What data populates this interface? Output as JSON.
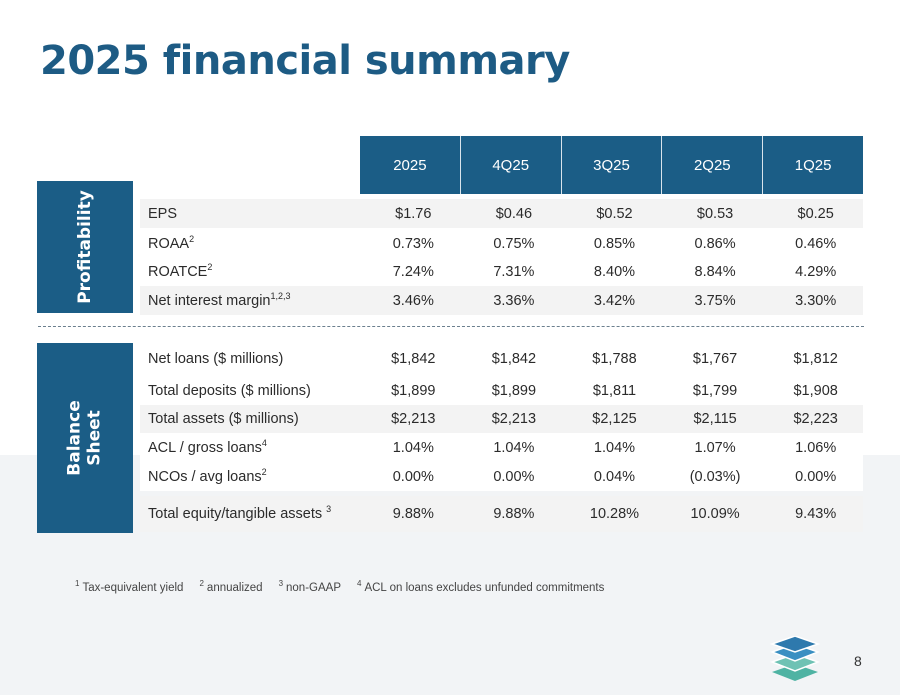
{
  "title": "2025 financial summary",
  "sections": {
    "profitability": "Profitability",
    "balance_sheet_line1": "Balance",
    "balance_sheet_line2": "Sheet"
  },
  "columns": [
    "2025",
    "4Q25",
    "3Q25",
    "2Q25",
    "1Q25"
  ],
  "rows": [
    {
      "label": "EPS",
      "sup": "",
      "values": [
        "$1.76",
        "$0.46",
        "$0.52",
        "$0.53",
        "$0.25"
      ]
    },
    {
      "label": "ROAA",
      "sup": "2",
      "values": [
        "0.73%",
        "0.75%",
        "0.85%",
        "0.86%",
        "0.46%"
      ]
    },
    {
      "label": "ROATCE",
      "sup": "2",
      "values": [
        "7.24%",
        "7.31%",
        "8.40%",
        "8.84%",
        "4.29%"
      ]
    },
    {
      "label": "Net interest margin",
      "sup": "1,2,3",
      "values": [
        "3.46%",
        "3.36%",
        "3.42%",
        "3.75%",
        "3.30%"
      ]
    },
    {
      "label": "Net loans ($ millions)",
      "sup": "",
      "values": [
        "$1,842",
        "$1,842",
        "$1,788",
        "$1,767",
        "$1,812"
      ]
    },
    {
      "label": "Total deposits ($ millions)",
      "sup": "",
      "values": [
        "$1,899",
        "$1,899",
        "$1,811",
        "$1,799",
        "$1,908"
      ]
    },
    {
      "label": "Total assets ($ millions)",
      "sup": "",
      "values": [
        "$2,213",
        "$2,213",
        "$2,125",
        "$2,115",
        "$2,223"
      ]
    },
    {
      "label": "ACL / gross loans",
      "sup": "4",
      "values": [
        "1.04%",
        "1.04%",
        "1.04%",
        "1.07%",
        "1.06%"
      ]
    },
    {
      "label": "NCOs / avg loans",
      "sup": "2",
      "values": [
        "0.00%",
        "0.00%",
        "0.04%",
        "(0.03%)",
        "0.00%"
      ]
    },
    {
      "label": "Total equity/tangible assets ",
      "sup": "3",
      "values": [
        "9.88%",
        "9.88%",
        "10.28%",
        "10.09%",
        "9.43%"
      ]
    }
  ],
  "footnotes": [
    {
      "num": "1",
      "text": "Tax-equivalent yield"
    },
    {
      "num": "2",
      "text": "annualized"
    },
    {
      "num": "3",
      "text": "non-GAAP"
    },
    {
      "num": "4",
      "text": "ACL on loans excludes unfunded commitments"
    }
  ],
  "page_number": "8",
  "colors": {
    "brand_blue": "#1b5d86",
    "title_blue": "#1d5b84",
    "logo_blue": "#3a8fc2",
    "logo_teal": "#4fb3a3"
  },
  "logo_icon": "stacked-layers-icon"
}
